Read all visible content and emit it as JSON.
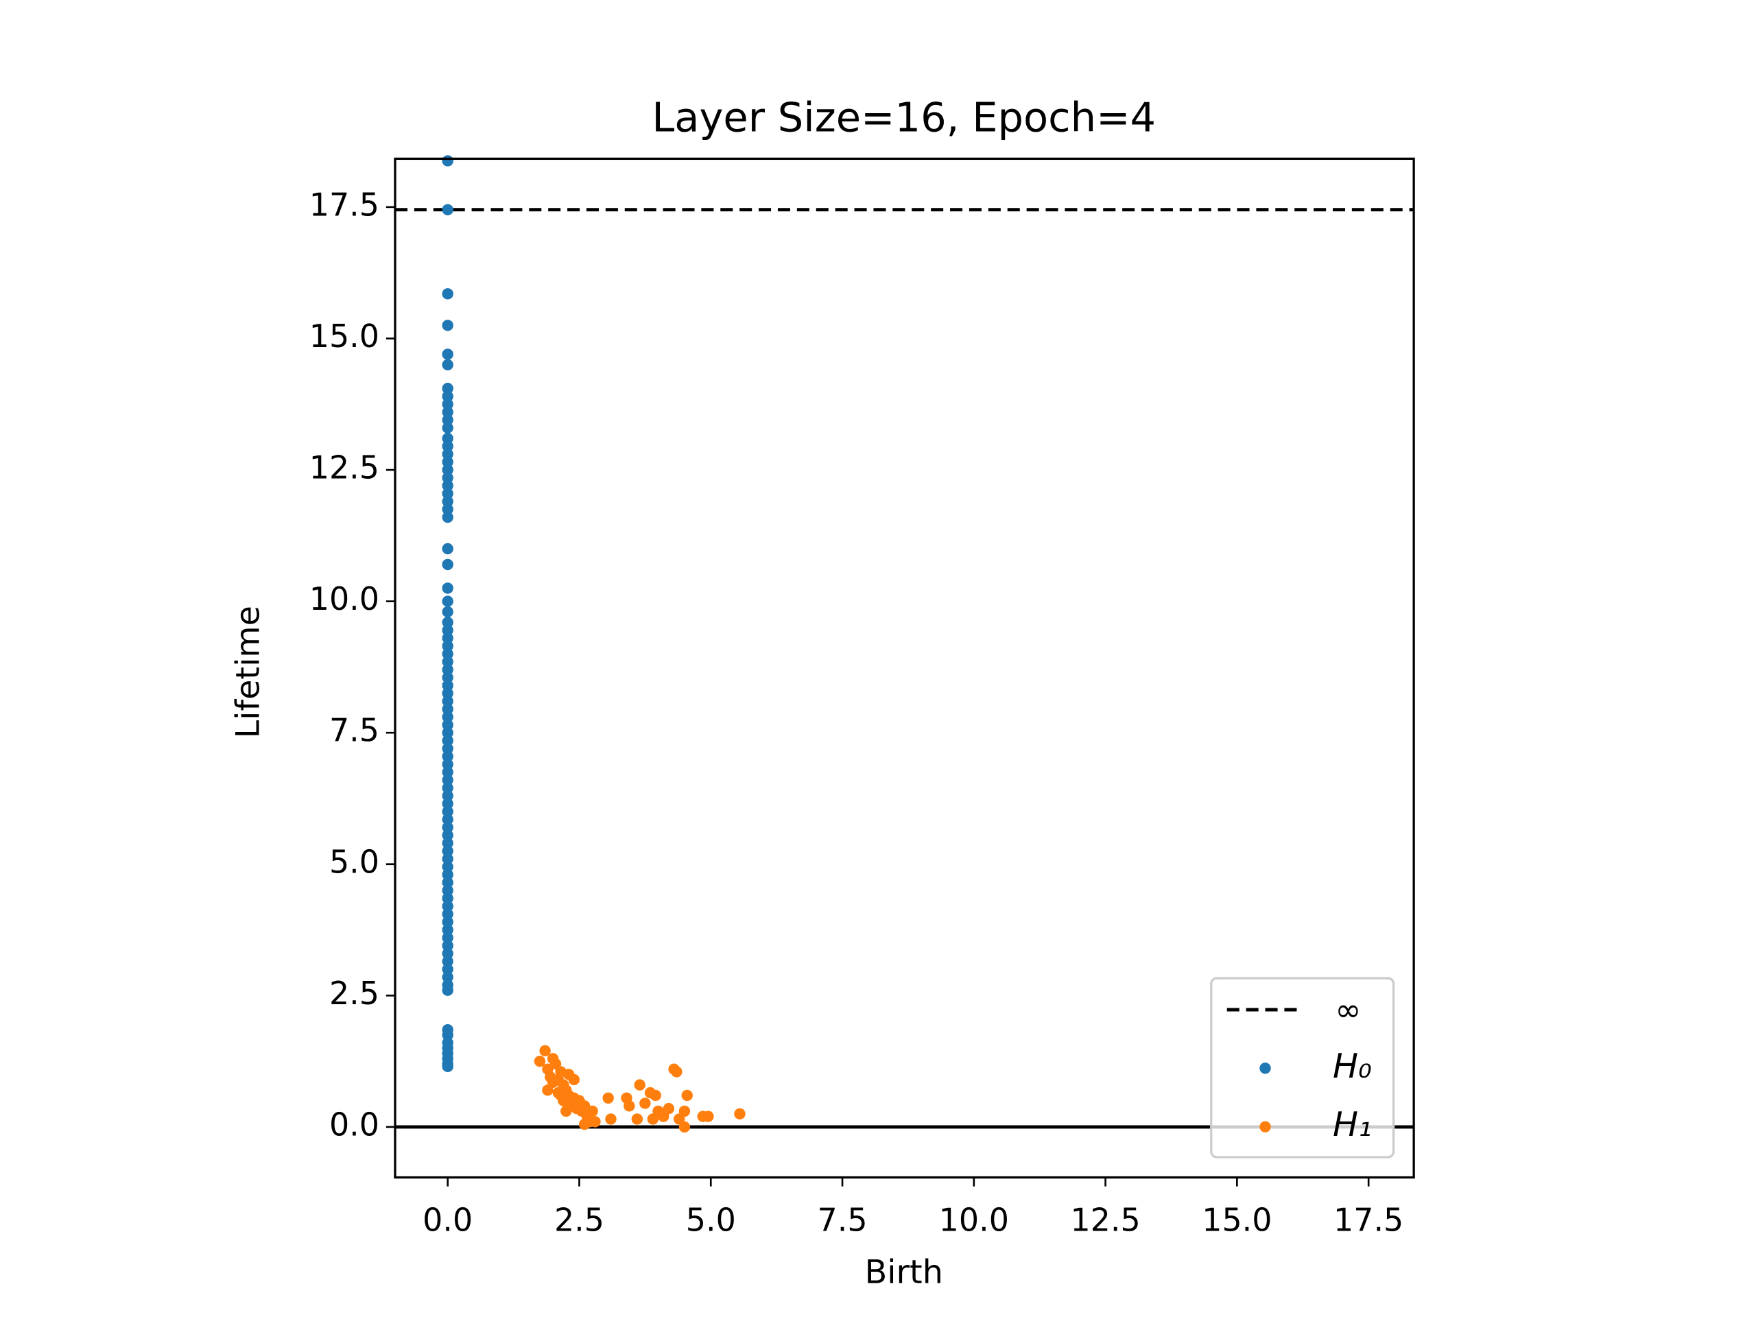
{
  "chart_data": {
    "type": "scatter",
    "title": "Layer Size=16, Epoch=4",
    "x_label": "Birth",
    "y_label": "Lifetime",
    "xlim": [
      -1.0,
      18.36
    ],
    "ylim": [
      -0.96,
      18.42
    ],
    "xticks": [
      {
        "value": 0,
        "label": "0.0"
      },
      {
        "value": 2.5,
        "label": "2.5"
      },
      {
        "value": 5,
        "label": "5.0"
      },
      {
        "value": 7.5,
        "label": "7.5"
      },
      {
        "value": 10,
        "label": "10.0"
      },
      {
        "value": 12.5,
        "label": "12.5"
      },
      {
        "value": 15,
        "label": "15.0"
      },
      {
        "value": 17.5,
        "label": "17.5"
      }
    ],
    "yticks": [
      {
        "value": 0,
        "label": "0.0"
      },
      {
        "value": 2.5,
        "label": "2.5"
      },
      {
        "value": 5,
        "label": "5.0"
      },
      {
        "value": 7.5,
        "label": "7.5"
      },
      {
        "value": 10,
        "label": "10.0"
      },
      {
        "value": 12.5,
        "label": "12.5"
      },
      {
        "value": 15,
        "label": "15.0"
      },
      {
        "value": 17.5,
        "label": "17.5"
      }
    ],
    "grid": false,
    "legend": "lower right",
    "infinity_line": {
      "name": "∞",
      "value": 17.45,
      "color": "#000000"
    },
    "series": [
      {
        "name": "H₀",
        "color": "#1f77b4",
        "x": [
          0,
          0,
          0,
          0,
          0,
          0,
          0,
          0,
          0,
          0,
          0,
          0,
          0,
          0,
          0,
          0,
          0,
          0,
          0,
          0,
          0,
          0,
          0,
          0,
          0,
          0,
          0,
          0,
          0,
          0,
          0,
          0,
          0,
          0,
          0,
          0,
          0,
          0,
          0,
          0,
          0,
          0,
          0,
          0,
          0,
          0,
          0,
          0,
          0,
          0,
          0,
          0,
          0,
          0,
          0,
          0,
          0,
          0,
          0,
          0,
          0,
          0,
          0,
          0,
          0,
          0,
          0,
          0,
          0,
          0,
          0,
          0,
          0,
          0,
          0,
          0,
          0,
          0,
          0,
          0,
          0,
          0,
          0,
          0
        ],
        "values": [
          18.38,
          17.45,
          15.85,
          15.25,
          14.7,
          14.5,
          14.05,
          13.9,
          13.75,
          13.6,
          13.45,
          13.3,
          13.1,
          12.95,
          12.8,
          12.65,
          12.5,
          12.35,
          12.2,
          12.05,
          11.9,
          11.75,
          11.6,
          11.0,
          10.7,
          10.25,
          10.0,
          9.8,
          9.6,
          9.45,
          9.3,
          9.15,
          9.0,
          8.85,
          8.7,
          8.55,
          8.4,
          8.25,
          8.1,
          7.95,
          7.8,
          7.65,
          7.5,
          7.35,
          7.2,
          7.05,
          6.9,
          6.75,
          6.6,
          6.45,
          6.3,
          6.15,
          6.0,
          5.85,
          5.7,
          5.55,
          5.4,
          5.25,
          5.1,
          4.95,
          4.8,
          4.65,
          4.5,
          4.35,
          4.2,
          4.05,
          3.9,
          3.75,
          3.6,
          3.45,
          3.3,
          3.15,
          3.0,
          2.85,
          2.7,
          2.6,
          1.85,
          1.75,
          1.6,
          1.5,
          1.4,
          1.3,
          1.2,
          1.15
        ]
      },
      {
        "name": "H₁",
        "color": "#ff7f0e",
        "x": [
          1.75,
          1.85,
          1.9,
          1.95,
          2.0,
          1.9,
          2.05,
          2.1,
          2.15,
          2.2,
          2.1,
          2.25,
          2.3,
          2.2,
          2.35,
          2.4,
          2.45,
          2.5,
          2.55,
          2.6,
          2.65,
          2.7,
          2.75,
          2.6,
          2.8,
          2.3,
          2.4,
          3.05,
          3.1,
          3.4,
          3.45,
          3.6,
          3.65,
          3.75,
          3.85,
          3.9,
          3.95,
          4.0,
          4.1,
          4.2,
          4.3,
          4.35,
          4.4,
          4.5,
          4.5,
          4.55,
          4.85,
          4.95,
          5.55,
          2.0,
          2.15,
          2.25
        ],
        "values": [
          1.25,
          1.45,
          1.1,
          0.95,
          1.3,
          0.7,
          1.2,
          0.9,
          1.05,
          0.8,
          0.65,
          0.7,
          0.6,
          0.5,
          0.45,
          0.55,
          0.35,
          0.5,
          0.3,
          0.4,
          0.2,
          0.1,
          0.3,
          0.05,
          0.1,
          1.0,
          0.9,
          0.55,
          0.15,
          0.55,
          0.4,
          0.15,
          0.8,
          0.45,
          0.65,
          0.15,
          0.6,
          0.3,
          0.2,
          0.35,
          1.1,
          1.05,
          0.15,
          0.3,
          0.0,
          0.6,
          0.2,
          0.2,
          0.25,
          0.85,
          0.6,
          0.3
        ]
      }
    ]
  }
}
